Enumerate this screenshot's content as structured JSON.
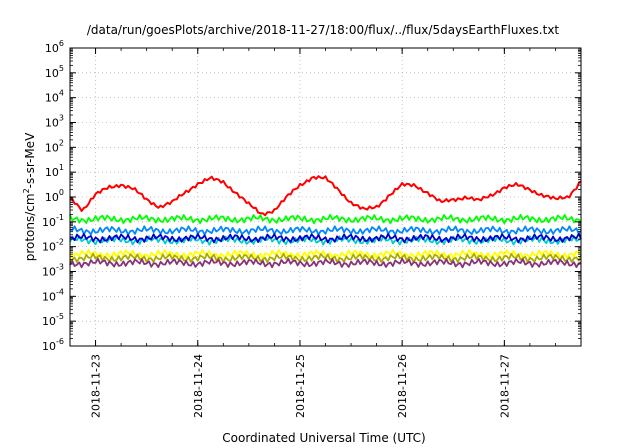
{
  "chart_data": {
    "type": "line",
    "title": "/data/run/goesPlots/archive/2018-11-27/18:00/flux/../flux/5daysEarthFluxes.txt",
    "xlabel": "Coordinated Universal Time (UTC)",
    "ylabel": {
      "base": "protons/cm",
      "exponent": "2",
      "rest": "-s-sr-MeV"
    },
    "y_scale": "log",
    "ylim": [
      1e-06,
      1000000.0
    ],
    "y_ticks": [
      {
        "base": "10",
        "exp": "6"
      },
      {
        "base": "10",
        "exp": "5"
      },
      {
        "base": "10",
        "exp": "4"
      },
      {
        "base": "10",
        "exp": "3"
      },
      {
        "base": "10",
        "exp": "2"
      },
      {
        "base": "10",
        "exp": "1"
      },
      {
        "base": "10",
        "exp": "0"
      },
      {
        "base": "10",
        "exp": "-1"
      },
      {
        "base": "10",
        "exp": "-2"
      },
      {
        "base": "10",
        "exp": "-3"
      },
      {
        "base": "10",
        "exp": "-4"
      },
      {
        "base": "10",
        "exp": "-5"
      },
      {
        "base": "10",
        "exp": "-6"
      }
    ],
    "x_ticks": [
      "2018-11-23",
      "2018-11-24",
      "2018-11-25",
      "2018-11-26",
      "2018-11-27"
    ],
    "xlim": [
      "2018-11-22 18:00",
      "2018-11-27 18:00"
    ],
    "grid": true,
    "series": [
      {
        "color": "#ff0000",
        "x": [
          "2018-11-22 18:00",
          "2018-11-22 21:00",
          "2018-11-23 00:00",
          "2018-11-23 03:00",
          "2018-11-23 06:00",
          "2018-11-23 09:00",
          "2018-11-23 12:00",
          "2018-11-23 15:00",
          "2018-11-23 18:00",
          "2018-11-23 21:00",
          "2018-11-24 00:00",
          "2018-11-24 03:00",
          "2018-11-24 06:00",
          "2018-11-24 09:00",
          "2018-11-24 12:00",
          "2018-11-24 15:00",
          "2018-11-24 18:00",
          "2018-11-24 21:00",
          "2018-11-25 00:00",
          "2018-11-25 03:00",
          "2018-11-25 06:00",
          "2018-11-25 09:00",
          "2018-11-25 12:00",
          "2018-11-25 15:00",
          "2018-11-25 18:00",
          "2018-11-25 21:00",
          "2018-11-26 00:00",
          "2018-11-26 03:00",
          "2018-11-26 06:00",
          "2018-11-26 09:00",
          "2018-11-26 12:00",
          "2018-11-26 15:00",
          "2018-11-26 18:00",
          "2018-11-26 21:00",
          "2018-11-27 00:00",
          "2018-11-27 03:00",
          "2018-11-27 06:00",
          "2018-11-27 09:00",
          "2018-11-27 12:00",
          "2018-11-27 15:00",
          "2018-11-27 18:00"
        ],
        "values": [
          1.0,
          0.3,
          1.2,
          2.5,
          3.2,
          2.0,
          0.8,
          0.4,
          0.6,
          1.5,
          3.5,
          5.5,
          4.0,
          1.5,
          0.5,
          0.2,
          0.3,
          1.0,
          3.0,
          6.5,
          5.5,
          2.0,
          0.6,
          0.3,
          0.4,
          1.2,
          3.0,
          3.0,
          1.5,
          0.6,
          0.8,
          1.0,
          0.7,
          1.2,
          2.5,
          3.0,
          2.0,
          1.2,
          0.8,
          1.0,
          4.5
        ]
      },
      {
        "color": "#00ff00",
        "x": [
          "2018-11-22 18:00",
          "2018-11-27 18:00"
        ],
        "values": [
          0.13,
          0.13
        ]
      },
      {
        "color": "#0088ff",
        "x": [
          "2018-11-22 18:00",
          "2018-11-27 18:00"
        ],
        "values": [
          0.045,
          0.045
        ]
      },
      {
        "color": "#00cccc",
        "x": [
          "2018-11-22 18:00",
          "2018-11-27 18:00"
        ],
        "values": [
          0.018,
          0.018
        ]
      },
      {
        "color": "#0000cc",
        "x": [
          "2018-11-22 18:00",
          "2018-11-27 18:00"
        ],
        "values": [
          0.022,
          0.022
        ]
      },
      {
        "color": "#ffff00",
        "x": [
          "2018-11-22 18:00",
          "2018-11-27 18:00"
        ],
        "values": [
          0.005,
          0.005
        ]
      },
      {
        "color": "#aaaa00",
        "x": [
          "2018-11-22 18:00",
          "2018-11-27 18:00"
        ],
        "values": [
          0.0035,
          0.0035
        ]
      },
      {
        "color": "#883377",
        "x": [
          "2018-11-22 18:00",
          "2018-11-27 18:00"
        ],
        "values": [
          0.0022,
          0.0022
        ]
      }
    ]
  }
}
